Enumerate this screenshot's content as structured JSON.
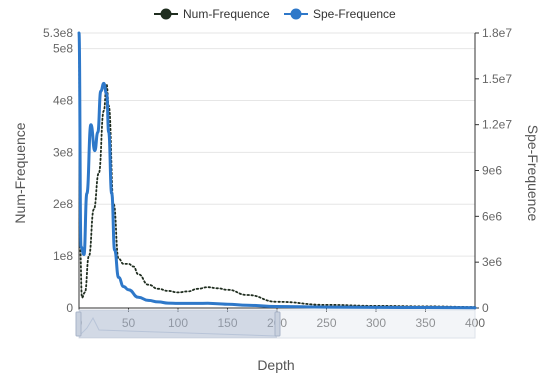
{
  "chart_data": {
    "type": "line",
    "xlabel": "Depth",
    "x_ticks": [
      "0",
      "50",
      "100",
      "150",
      "200",
      "250",
      "300",
      "350",
      "400"
    ],
    "xlim": [
      0,
      400
    ],
    "y_left": {
      "label": "Num-Frequence",
      "ticks": [
        "0",
        "1e8",
        "2e8",
        "3e8",
        "4e8",
        "5e8",
        "5.3e8"
      ],
      "ylim": [
        0,
        530000000
      ]
    },
    "y_right": {
      "label": "Spe-Frequence",
      "ticks": [
        "0",
        "3e6",
        "6e6",
        "9e6",
        "1.2e7",
        "1.5e7",
        "1.8e7"
      ],
      "ylim": [
        0,
        18000000
      ]
    },
    "legend": {
      "placement": "top-center"
    },
    "grid": true,
    "series": [
      {
        "name": "Num-Frequence",
        "axis": "left",
        "color": "#1f2d1f",
        "style": "dotted",
        "marker": "circle",
        "x": [
          0,
          1,
          3,
          6,
          10,
          15,
          20,
          25,
          28,
          30,
          35,
          40,
          45,
          50,
          55,
          60,
          70,
          80,
          90,
          100,
          110,
          120,
          130,
          140,
          150,
          170,
          200,
          250,
          300,
          350,
          400
        ],
        "y": [
          520000000,
          120000000,
          20000000,
          30000000,
          100000000,
          190000000,
          260000000,
          380000000,
          430000000,
          390000000,
          200000000,
          95000000,
          85000000,
          85000000,
          80000000,
          65000000,
          45000000,
          37000000,
          33000000,
          30000000,
          32000000,
          37000000,
          40000000,
          38000000,
          35000000,
          25000000,
          12000000,
          6000000,
          4000000,
          3000000,
          2000000
        ]
      },
      {
        "name": "Spe-Frequence",
        "axis": "right",
        "color": "#2e78c9",
        "style": "solid",
        "marker": "circle",
        "x": [
          0,
          2,
          5,
          8,
          12,
          16,
          19,
          22,
          25,
          28,
          30,
          33,
          36,
          40,
          45,
          50,
          60,
          70,
          80,
          90,
          100,
          110,
          120,
          130,
          140,
          150,
          170,
          200,
          250,
          300,
          350,
          400
        ],
        "y": [
          18000000,
          4000000,
          3500000,
          7500000,
          12000000,
          10300000,
          11500000,
          14200000,
          14700000,
          14000000,
          11500000,
          7500000,
          3800000,
          2000000,
          1400000,
          1200000,
          700000,
          500000,
          400000,
          320000,
          300000,
          300000,
          300000,
          310000,
          280000,
          250000,
          180000,
          100000,
          60000,
          40000,
          30000,
          20000
        ]
      }
    ]
  }
}
